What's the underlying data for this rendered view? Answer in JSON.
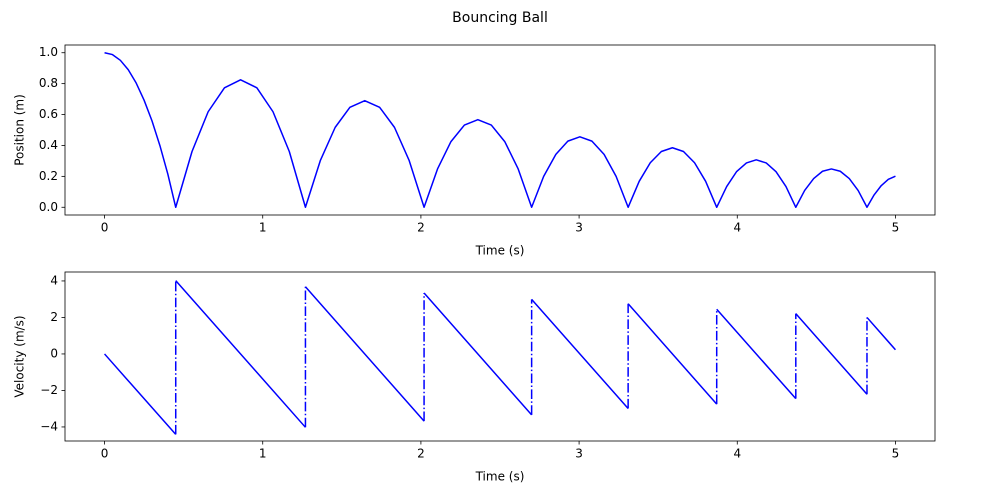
{
  "title": "Bouncing Ball",
  "chart_data": [
    {
      "type": "line",
      "xlabel": "Time (s)",
      "ylabel": "Position (m)",
      "xlim": [
        -0.25,
        5.25
      ],
      "ylim": [
        -0.05,
        1.05
      ],
      "xticks": [
        0,
        1,
        2,
        3,
        4,
        5
      ],
      "yticks": [
        {
          "value": 0,
          "label": "0.0"
        },
        {
          "value": 0.2,
          "label": "0.2"
        },
        {
          "value": 0.4,
          "label": "0.4"
        },
        {
          "value": 0.6,
          "label": "0.6"
        },
        {
          "value": 0.8,
          "label": "0.8"
        },
        {
          "value": 1,
          "label": "1.0"
        }
      ],
      "series": [
        {
          "color": "#0000ff",
          "linestyle": "-",
          "x": [
            0,
            0.05,
            0.1,
            0.15,
            0.2,
            0.25,
            0.3,
            0.35,
            0.4,
            0.45,
            0.553,
            0.655,
            0.758,
            0.86,
            0.963,
            1.065,
            1.168,
            1.27,
            1.364,
            1.458,
            1.551,
            1.645,
            1.739,
            1.833,
            1.926,
            2.02,
            2.105,
            2.19,
            2.275,
            2.36,
            2.445,
            2.53,
            2.615,
            2.7,
            2.776,
            2.853,
            2.929,
            3.005,
            3.081,
            3.158,
            3.234,
            3.31,
            3.38,
            3.45,
            3.52,
            3.59,
            3.66,
            3.73,
            3.8,
            3.87,
            3.933,
            3.995,
            4.058,
            4.12,
            4.183,
            4.245,
            4.308,
            4.37,
            4.426,
            4.483,
            4.539,
            4.595,
            4.651,
            4.708,
            4.764,
            4.82,
            4.865,
            4.91,
            4.955,
            5.0
          ],
          "values": [
            1,
            0.988,
            0.951,
            0.89,
            0.804,
            0.693,
            0.559,
            0.399,
            0.215,
            0,
            0.361,
            0.618,
            0.773,
            0.825,
            0.773,
            0.618,
            0.361,
            0,
            0.302,
            0.517,
            0.647,
            0.69,
            0.647,
            0.517,
            0.302,
            0,
            0.248,
            0.425,
            0.532,
            0.567,
            0.532,
            0.425,
            0.248,
            0,
            0.2,
            0.342,
            0.428,
            0.456,
            0.428,
            0.342,
            0.2,
            0,
            0.168,
            0.288,
            0.361,
            0.385,
            0.361,
            0.288,
            0.168,
            0,
            0.134,
            0.23,
            0.287,
            0.307,
            0.287,
            0.23,
            0.134,
            0,
            0.109,
            0.186,
            0.233,
            0.248,
            0.233,
            0.186,
            0.109,
            0,
            0.08,
            0.14,
            0.181,
            0.201
          ]
        }
      ]
    },
    {
      "type": "line",
      "xlabel": "Time (s)",
      "ylabel": "Velocity (m/s)",
      "xlim": [
        -0.25,
        5.25
      ],
      "ylim": [
        -4.77,
        4.49
      ],
      "xticks": [
        0,
        1,
        2,
        3,
        4,
        5
      ],
      "yticks": [
        {
          "value": -4,
          "label": "−4"
        },
        {
          "value": -2,
          "label": "−2"
        },
        0,
        2,
        4
      ],
      "series": [
        {
          "color": "#0000ff",
          "linestyle": "-",
          "x": [
            0,
            0.45,
            0.45,
            0.45,
            1.27,
            1.27,
            1.27,
            2.02,
            2.02,
            2.02,
            2.7,
            2.7,
            2.7,
            3.31,
            3.31,
            3.31,
            3.87,
            3.87,
            3.87,
            4.37,
            4.37,
            4.37,
            4.82,
            4.82,
            4.82,
            5.0
          ],
          "values": [
            0,
            -4.41,
            null,
            4.02,
            -4.02,
            null,
            3.68,
            -3.68,
            null,
            3.34,
            -3.34,
            null,
            2.99,
            -2.99,
            null,
            2.75,
            -2.75,
            null,
            2.45,
            -2.45,
            null,
            2.21,
            -2.21,
            null,
            2.0,
            0.23
          ]
        },
        {
          "color": "#0000ff",
          "linestyle": "-.",
          "x": [
            0.45,
            0.45,
            0.45,
            1.27,
            1.27,
            1.27,
            2.02,
            2.02,
            2.02,
            2.7,
            2.7,
            2.7,
            3.31,
            3.31,
            3.31,
            3.87,
            3.87,
            3.87,
            4.37,
            4.37,
            4.37,
            4.82,
            4.82
          ],
          "values": [
            -4.41,
            4.02,
            null,
            -4.02,
            3.68,
            null,
            -3.68,
            3.34,
            null,
            -3.34,
            2.99,
            null,
            -2.99,
            2.75,
            null,
            -2.75,
            2.45,
            null,
            -2.45,
            2.21,
            null,
            -2.21,
            2.0
          ]
        }
      ]
    }
  ]
}
